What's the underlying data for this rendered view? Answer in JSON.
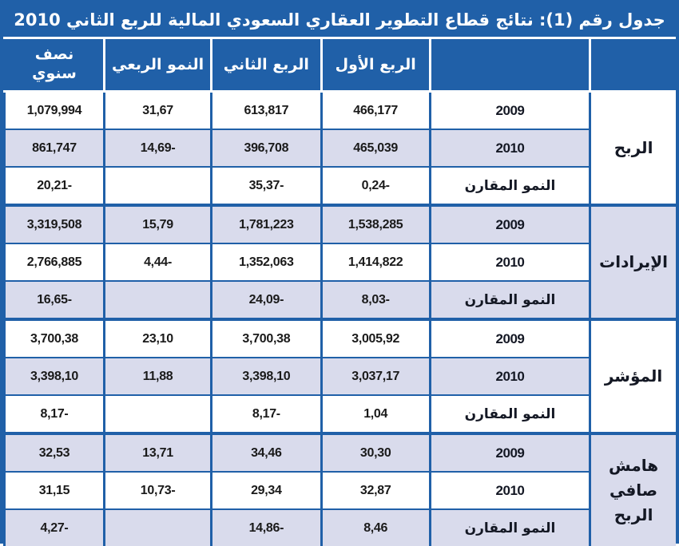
{
  "title": "جدول رقم (1): نتائج قطاع التطوير العقاري السعودي المالية للربع الثاني 2010",
  "columns": {
    "group": "",
    "row_label": "",
    "q1": "الربع الأول",
    "q2": "الربع الثاني",
    "quarterly_growth": "النمو الربعي",
    "half_year": "نصف\nسنوي"
  },
  "groups": [
    {
      "label": "الربح",
      "rows": [
        {
          "label": "2009",
          "q1": "466,177",
          "q2": "613,817",
          "growth": "31,67",
          "half": "1,079,994"
        },
        {
          "label": "2010",
          "q1": "465,039",
          "q2": "396,708",
          "growth": "14,69-",
          "half": "861,747"
        },
        {
          "label": "النمو المقارن",
          "q1": "0,24-",
          "q2": "35,37-",
          "growth": "",
          "half": "20,21-"
        }
      ]
    },
    {
      "label": "الإيرادات",
      "rows": [
        {
          "label": "2009",
          "q1": "1,538,285",
          "q2": "1,781,223",
          "growth": "15,79",
          "half": "3,319,508"
        },
        {
          "label": "2010",
          "q1": "1,414,822",
          "q2": "1,352,063",
          "growth": "4,44-",
          "half": "2,766,885"
        },
        {
          "label": "النمو المقارن",
          "q1": "8,03-",
          "q2": "24,09-",
          "growth": "",
          "half": "16,65-"
        }
      ]
    },
    {
      "label": "المؤشر",
      "rows": [
        {
          "label": "2009",
          "q1": "3,005,92",
          "q2": "3,700,38",
          "growth": "23,10",
          "half": "3,700,38"
        },
        {
          "label": "2010",
          "q1": "3,037,17",
          "q2": "3,398,10",
          "growth": "11,88",
          "half": "3,398,10"
        },
        {
          "label": "النمو المقارن",
          "q1": "1,04",
          "q2": "8,17-",
          "growth": "",
          "half": "8,17-"
        }
      ]
    },
    {
      "label": "هامش صافي الربح",
      "rows": [
        {
          "label": "2009",
          "q1": "30,30",
          "q2": "34,46",
          "growth": "13,71",
          "half": "32,53"
        },
        {
          "label": "2010",
          "q1": "32,87",
          "q2": "29,34",
          "growth": "10,73-",
          "half": "31,15"
        },
        {
          "label": "النمو المقارن",
          "q1": "8,46",
          "q2": "14,86-",
          "growth": "",
          "half": "4,27-"
        }
      ]
    }
  ],
  "colors": {
    "band_blue": "#2060A8",
    "row_alt_lavender": "#D9DBEC",
    "header_text": "#FFFFFF",
    "body_text": "#1A1A1A"
  }
}
